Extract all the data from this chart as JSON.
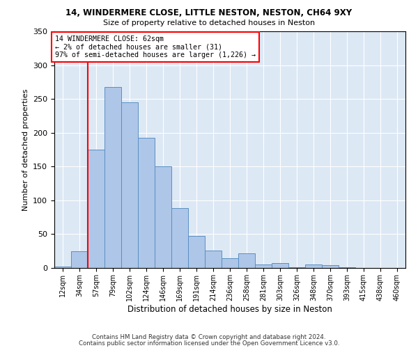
{
  "title1": "14, WINDERMERE CLOSE, LITTLE NESTON, NESTON, CH64 9XY",
  "title2": "Size of property relative to detached houses in Neston",
  "xlabel": "Distribution of detached houses by size in Neston",
  "ylabel": "Number of detached properties",
  "categories": [
    "12sqm",
    "34sqm",
    "57sqm",
    "79sqm",
    "102sqm",
    "124sqm",
    "146sqm",
    "169sqm",
    "191sqm",
    "214sqm",
    "236sqm",
    "258sqm",
    "281sqm",
    "303sqm",
    "326sqm",
    "348sqm",
    "370sqm",
    "393sqm",
    "415sqm",
    "438sqm",
    "460sqm"
  ],
  "values": [
    2,
    25,
    175,
    268,
    245,
    192,
    150,
    89,
    47,
    26,
    14,
    22,
    5,
    7,
    1,
    5,
    4,
    1,
    0,
    0,
    0
  ],
  "bar_color": "#aec6e8",
  "bar_edge_color": "#5a8fc2",
  "vline_bar_index": 2,
  "annotation_text": "14 WINDERMERE CLOSE: 62sqm\n← 2% of detached houses are smaller (31)\n97% of semi-detached houses are larger (1,226) →",
  "annotation_box_color": "white",
  "annotation_box_edge_color": "red",
  "vline_color": "red",
  "ylim": [
    0,
    350
  ],
  "yticks": [
    0,
    50,
    100,
    150,
    200,
    250,
    300,
    350
  ],
  "background_color": "#dde8f5",
  "grid_color": "#ffffff",
  "footer1": "Contains HM Land Registry data © Crown copyright and database right 2024.",
  "footer2": "Contains public sector information licensed under the Open Government Licence v3.0."
}
